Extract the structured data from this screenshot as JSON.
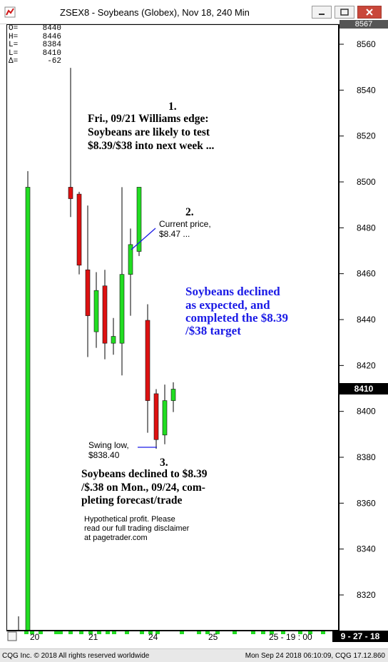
{
  "window": {
    "title": "ZSEX8 - Soybeans (Globex), Nov 18, 240 Min",
    "buttons": [
      "minimize",
      "maximize",
      "close"
    ]
  },
  "ohlc_panel": [
    {
      "key": "O=",
      "value": "8440"
    },
    {
      "key": "H=",
      "value": "8446"
    },
    {
      "key": "L=",
      "value": "8384"
    },
    {
      "key": "L=",
      "value": "8410"
    },
    {
      "key": "Δ=",
      "value": "-62"
    }
  ],
  "y_axis": {
    "top_value": "8567",
    "ticks": [
      "8560",
      "8540",
      "8520",
      "8500",
      "8480",
      "8460",
      "8440",
      "8420",
      "8400",
      "8380",
      "8360",
      "8340",
      "8320"
    ],
    "current_price": "8410"
  },
  "x_axis": {
    "labels": [
      "20",
      "21",
      "24",
      "25",
      "25 - 19 : 00"
    ],
    "date_box": "9 - 27 - 18"
  },
  "annotations": {
    "note1_number": "1.",
    "note1_lines": [
      "Fri., 09/21 Williams edge:",
      "Soybeans are likely to test",
      "$8.39/$38 into next week ..."
    ],
    "note2_number": "2.",
    "note2_lines": [
      "Current price,",
      "$8.47 ..."
    ],
    "blue_lines": [
      "Soybeans declined",
      "as expected, and",
      "completed the $8.39",
      "/$38 target"
    ],
    "swing_lines": [
      "Swing low,",
      "$838.40"
    ],
    "note3_number": "3.",
    "note3_lines": [
      "Soybeans declined to $8.39",
      "/$.38 on Mon., 09/24, com-",
      "pleting forecast/trade"
    ],
    "disclaimer_lines": [
      "Hypothetical profit. Please",
      "read our full trading disclaimer",
      "at pagetrader.com"
    ]
  },
  "footer": {
    "left": "CQG Inc. © 2018 All rights reserved worldwide",
    "right": "Mon Sep 24 2018 06:10:09, CQG 17.12.860"
  },
  "colors": {
    "up_candle": "#22dd22",
    "down_candle": "#dd1111",
    "blue_text": "#1a1ae6",
    "wick": "#000000"
  },
  "chart_data": {
    "type": "candlestick",
    "title": "ZSEX8 - Soybeans (Globex), Nov 18, 240 Min",
    "ylim": [
      8310,
      8567
    ],
    "candles": [
      {
        "o": 8300,
        "h": 8305,
        "l": 8300,
        "c": 8302
      },
      {
        "o": 8300,
        "h": 8311,
        "l": 8300,
        "c": 8305
      },
      {
        "o": 8300,
        "h": 8505,
        "l": 8300,
        "c": 8498
      },
      {
        "o": 8498,
        "h": 8550,
        "l": 8485,
        "c": 8493
      },
      {
        "o": 8495,
        "h": 8496,
        "l": 8460,
        "c": 8464
      },
      {
        "o": 8462,
        "h": 8490,
        "l": 8424,
        "c": 8442
      },
      {
        "o": 8435,
        "h": 8461,
        "l": 8428,
        "c": 8453
      },
      {
        "o": 8455,
        "h": 8462,
        "l": 8423,
        "c": 8430
      },
      {
        "o": 8430,
        "h": 8441,
        "l": 8425,
        "c": 8433
      },
      {
        "o": 8430,
        "h": 8498,
        "l": 8416,
        "c": 8460
      },
      {
        "o": 8460,
        "h": 8480,
        "l": 8442,
        "c": 8473
      },
      {
        "o": 8470,
        "h": 8498,
        "l": 8468,
        "c": 8498
      },
      {
        "o": 8440,
        "h": 8447,
        "l": 8391,
        "c": 8405
      },
      {
        "o": 8408,
        "h": 8410,
        "l": 8384,
        "c": 8388
      },
      {
        "o": 8390,
        "h": 8412,
        "l": 8386,
        "c": 8405
      },
      {
        "o": 8405,
        "h": 8413,
        "l": 8400,
        "c": 8410
      }
    ]
  }
}
